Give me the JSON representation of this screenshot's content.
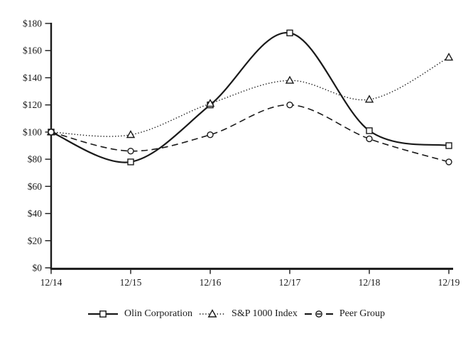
{
  "chart_data": {
    "type": "line",
    "title": "",
    "xlabel": "",
    "ylabel": "",
    "categories": [
      "12/14",
      "12/15",
      "12/16",
      "12/17",
      "12/18",
      "12/19"
    ],
    "series": [
      {
        "name": "Olin Corporation",
        "values": [
          100,
          78,
          120,
          173,
          101,
          90
        ],
        "line_style": "solid",
        "marker": "square"
      },
      {
        "name": "S&P 1000 Index",
        "values": [
          100,
          98,
          121,
          138,
          124,
          155
        ],
        "line_style": "dotted",
        "marker": "triangle"
      },
      {
        "name": "Peer Group",
        "values": [
          100,
          86,
          98,
          120,
          95,
          78
        ],
        "line_style": "dashed",
        "marker": "circle"
      }
    ],
    "ylim": [
      0,
      180
    ],
    "ytick_step": 20,
    "ytick_labels": [
      "$0",
      "$20",
      "$40",
      "$60",
      "$80",
      "$100",
      "$120",
      "$140",
      "$160",
      "$180"
    ],
    "grid": false,
    "legend_position": "bottom",
    "axis_color": "#1a1a1a",
    "marker_fill": "#ffffff",
    "background_color": "#ffffff"
  }
}
